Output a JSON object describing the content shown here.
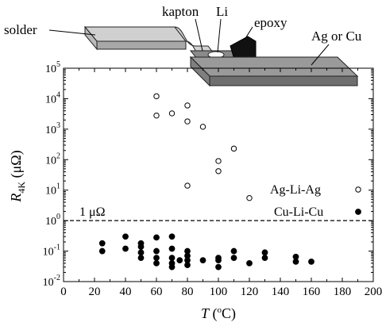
{
  "diagram": {
    "labels": {
      "solder": "solder",
      "kapton": "kapton",
      "li": "Li",
      "epoxy": "epoxy",
      "ag_or_cu": "Ag or Cu"
    }
  },
  "chart_data": {
    "type": "scatter",
    "xlabel": "T (°C)",
    "ylabel": "R4K (μΩ)",
    "xlim": [
      0,
      200
    ],
    "ylim": [
      0.01,
      100000
    ],
    "y_scale": "log",
    "x_ticks": [
      "0",
      "20",
      "40",
      "60",
      "80",
      "100",
      "120",
      "140",
      "160",
      "180",
      "200"
    ],
    "y_tick_exponents": [
      "-2",
      "-1",
      "0",
      "1",
      "2",
      "3",
      "4",
      "5"
    ],
    "grid": false,
    "legend_position": "right",
    "series": [
      {
        "name": "Ag-Li-Ag",
        "marker": "open-circle",
        "points": [
          [
            60,
            12000
          ],
          [
            60,
            2800
          ],
          [
            70,
            3300
          ],
          [
            80,
            6000
          ],
          [
            80,
            1800
          ],
          [
            90,
            1200
          ],
          [
            100,
            90
          ],
          [
            100,
            42
          ],
          [
            110,
            230
          ],
          [
            80,
            14
          ],
          [
            120,
            5.5
          ]
        ]
      },
      {
        "name": "Cu-Li-Cu",
        "marker": "filled-circle",
        "points": [
          [
            25,
            0.18
          ],
          [
            25,
            0.1
          ],
          [
            40,
            0.3
          ],
          [
            40,
            0.12
          ],
          [
            50,
            0.18
          ],
          [
            50,
            0.14
          ],
          [
            50,
            0.09
          ],
          [
            50,
            0.06
          ],
          [
            60,
            0.28
          ],
          [
            60,
            0.1
          ],
          [
            60,
            0.06
          ],
          [
            60,
            0.04
          ],
          [
            70,
            0.3
          ],
          [
            70,
            0.12
          ],
          [
            70,
            0.06
          ],
          [
            70,
            0.04
          ],
          [
            70,
            0.03
          ],
          [
            75,
            0.05
          ],
          [
            80,
            0.1
          ],
          [
            80,
            0.07
          ],
          [
            80,
            0.05
          ],
          [
            80,
            0.035
          ],
          [
            90,
            0.05
          ],
          [
            100,
            0.06
          ],
          [
            100,
            0.05
          ],
          [
            100,
            0.03
          ],
          [
            110,
            0.1
          ],
          [
            110,
            0.06
          ],
          [
            120,
            0.04
          ],
          [
            130,
            0.09
          ],
          [
            130,
            0.06
          ],
          [
            150,
            0.065
          ],
          [
            150,
            0.045
          ],
          [
            160,
            0.045
          ]
        ]
      }
    ],
    "reference_line": {
      "label": "1 μΩ",
      "value": 1,
      "style": "dashed"
    }
  }
}
